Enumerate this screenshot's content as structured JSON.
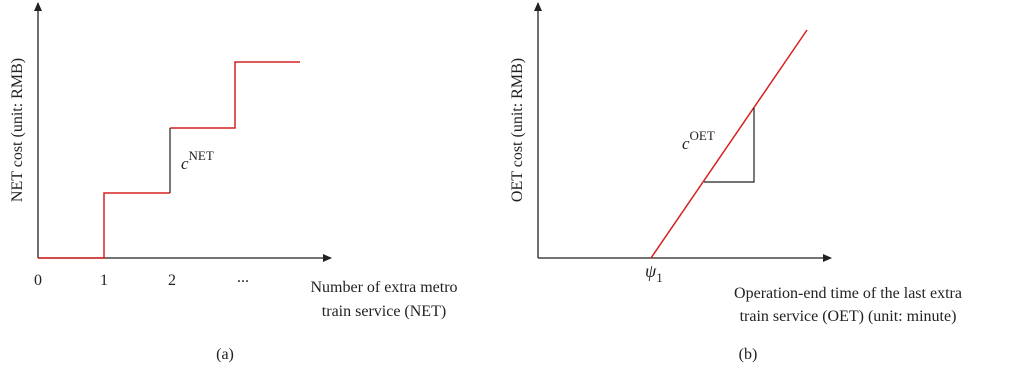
{
  "panel_a": {
    "y_label": "NET cost (unit: RMB)",
    "x_label": [
      "Number of extra metro",
      "train service (NET)"
    ],
    "ticks": [
      "0",
      "1",
      "2",
      "..."
    ],
    "annotation": {
      "symbol": "c",
      "superscript": "NET"
    },
    "caption": "(a)"
  },
  "panel_b": {
    "y_label": "OET cost (unit: RMB)",
    "x_label": [
      "Operation-end time of the last extra",
      "train service (OET) (unit: minute)"
    ],
    "tick": {
      "symbol": "ψ",
      "subscript": "1"
    },
    "annotation": {
      "symbol": "c",
      "superscript": "OET"
    },
    "caption": "(b)"
  }
}
